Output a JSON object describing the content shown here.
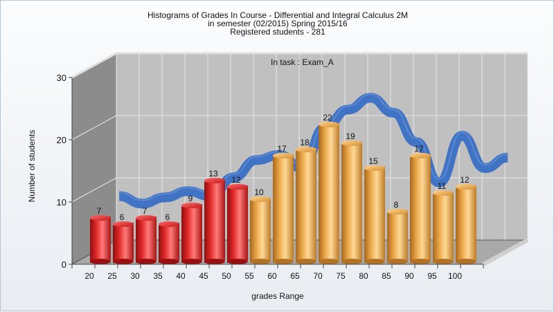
{
  "chart_data": {
    "type": "bar",
    "title_lines": [
      "Histograms of Grades  In Course - Differential and Integral Calculus 2M",
      "in semester  (02/2015) Spring 2015/16",
      "Registered students - 281"
    ],
    "annotation": "In task : Exam_A",
    "xlabel": "grades Range",
    "ylabel": "Number of students",
    "ylim": [
      0,
      30
    ],
    "yticks": [
      0,
      10,
      20,
      30
    ],
    "grid": true,
    "categories": [
      "20",
      "25",
      "30",
      "35",
      "40",
      "45",
      "50",
      "55",
      "60",
      "65",
      "70",
      "75",
      "80",
      "85",
      "90",
      "95",
      "100"
    ],
    "values": [
      7,
      6,
      7,
      6,
      9,
      13,
      12,
      10,
      17,
      18,
      22,
      19,
      15,
      8,
      17,
      11,
      12
    ],
    "bar_colors": [
      "red",
      "red",
      "red",
      "red",
      "red",
      "red",
      "red",
      "orange",
      "orange",
      "orange",
      "orange",
      "orange",
      "orange",
      "orange",
      "orange",
      "orange",
      "orange"
    ],
    "trend_line": {
      "color": "#3a6fc4",
      "x": [
        22.5,
        27.5,
        32.5,
        37.5,
        42.5,
        47.5,
        52.5,
        57.5,
        62.5,
        67.5,
        72.5,
        77.5,
        82.5,
        87.5,
        92.5,
        97.5,
        102.5,
        107.5
      ],
      "y": [
        8.8,
        7.6,
        8.6,
        9.6,
        8.8,
        11.8,
        14.6,
        15.4,
        13.3,
        19.8,
        22.7,
        24.6,
        22.2,
        17.5,
        11.0,
        18.5,
        13.3,
        15.0
      ]
    }
  },
  "colors": {
    "red": "#d81c1c",
    "orange": "#e8a240",
    "wall": "#c0c0c0",
    "side": "#8c8c8c",
    "floor": "#a9a9a9"
  }
}
